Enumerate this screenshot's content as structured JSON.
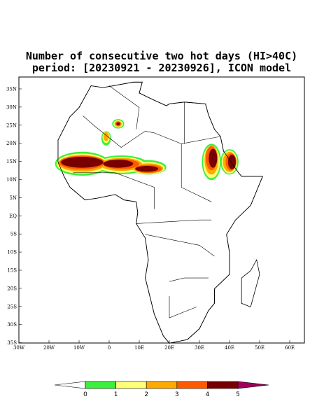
{
  "title_lines": [
    "Number of consecutive two hot days (HI>40C)",
    "period: [20230921 - 20230926], ICON model"
  ],
  "lat_labels": [
    "35N",
    "30N",
    "25N",
    "20N",
    "15N",
    "10N",
    "5N",
    "EQ",
    "5S",
    "10S",
    "15S",
    "20S",
    "25S",
    "30S",
    "35S"
  ],
  "lon_labels": [
    "30W",
    "20W",
    "10W",
    "0",
    "10E",
    "20E",
    "30E",
    "40E",
    "50E",
    "60E"
  ],
  "colorbar": {
    "levels": [
      0,
      1,
      2,
      3,
      4,
      5
    ],
    "colors": [
      "#3cf03c",
      "#ffff78",
      "#ffaa00",
      "#ff5a00",
      "#780000"
    ],
    "under_color": "#ffffff",
    "over_color": "#a0005a"
  }
}
